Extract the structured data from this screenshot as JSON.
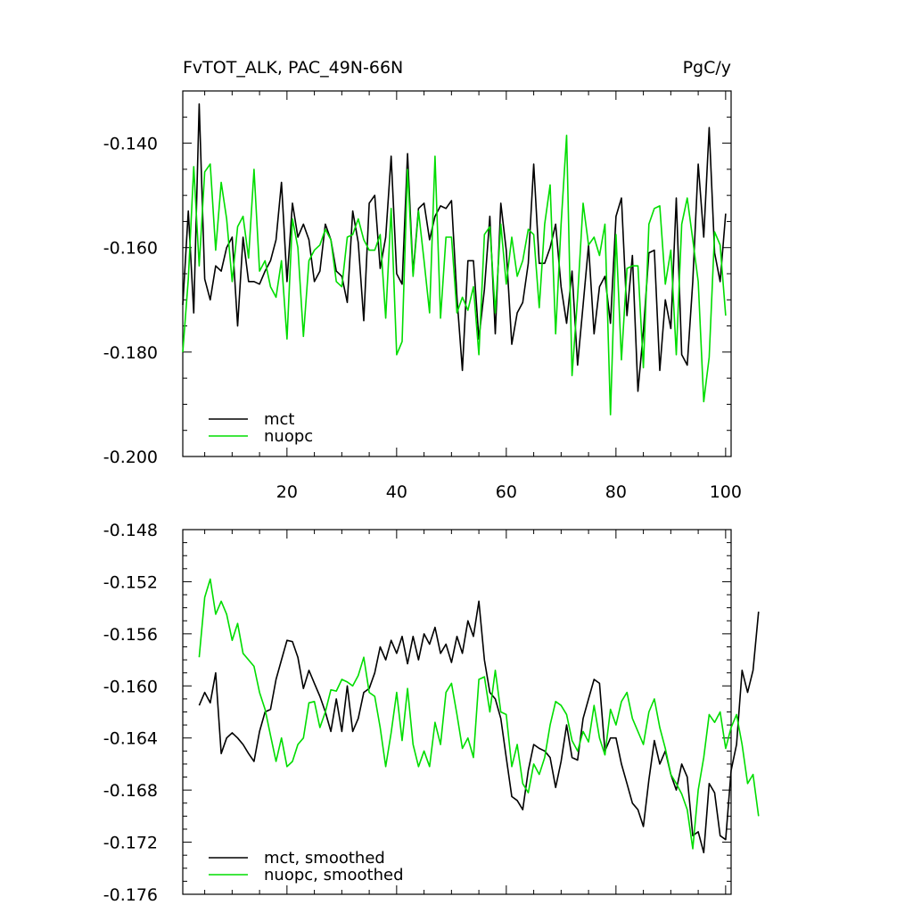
{
  "chart_data": [
    {
      "type": "line",
      "title": "FvTOT_ALK, PAC_49N-66N",
      "units": "PgC/y",
      "xlim": [
        1,
        101
      ],
      "ylim": [
        -0.2,
        -0.13
      ],
      "xticks": [
        20,
        40,
        60,
        80,
        100
      ],
      "yticks": [
        -0.2,
        -0.18,
        -0.16,
        -0.14
      ],
      "ytick_labels": [
        "-0.200",
        "-0.180",
        "-0.160",
        "-0.140"
      ],
      "legend_position": "bottom-left",
      "series": [
        {
          "name": "mct",
          "color": "#000000",
          "x_start": 1,
          "values": [
            -0.171,
            -0.153,
            -0.1725,
            -0.1325,
            -0.166,
            -0.17,
            -0.1635,
            -0.1645,
            -0.16,
            -0.158,
            -0.175,
            -0.158,
            -0.1665,
            -0.1665,
            -0.167,
            -0.1645,
            -0.1625,
            -0.1585,
            -0.1475,
            -0.1665,
            -0.1515,
            -0.158,
            -0.1555,
            -0.1585,
            -0.1665,
            -0.1645,
            -0.1555,
            -0.1585,
            -0.1645,
            -0.1655,
            -0.1705,
            -0.153,
            -0.159,
            -0.174,
            -0.1515,
            -0.15,
            -0.164,
            -0.158,
            -0.1425,
            -0.165,
            -0.167,
            -0.142,
            -0.165,
            -0.1525,
            -0.1515,
            -0.1585,
            -0.154,
            -0.152,
            -0.1525,
            -0.151,
            -0.1695,
            -0.1835,
            -0.1625,
            -0.1625,
            -0.1775,
            -0.168,
            -0.154,
            -0.1765,
            -0.1515,
            -0.1605,
            -0.1785,
            -0.1725,
            -0.1705,
            -0.163,
            -0.144,
            -0.163,
            -0.163,
            -0.16,
            -0.1555,
            -0.1675,
            -0.1745,
            -0.1645,
            -0.1825,
            -0.171,
            -0.1595,
            -0.1765,
            -0.1675,
            -0.1655,
            -0.1745,
            -0.154,
            -0.1505,
            -0.173,
            -0.1615,
            -0.1875,
            -0.176,
            -0.161,
            -0.1605,
            -0.1835,
            -0.17,
            -0.1755,
            -0.1505,
            -0.1805,
            -0.1825,
            -0.1665,
            -0.144,
            -0.158,
            -0.137,
            -0.161,
            -0.1665,
            -0.1535
          ]
        },
        {
          "name": "nuopc",
          "color": "#00dd00",
          "x_start": 1,
          "values": [
            -0.18,
            -0.166,
            -0.1445,
            -0.1635,
            -0.1455,
            -0.144,
            -0.1605,
            -0.1475,
            -0.1545,
            -0.1665,
            -0.156,
            -0.154,
            -0.162,
            -0.145,
            -0.1645,
            -0.1625,
            -0.1675,
            -0.1695,
            -0.1625,
            -0.1775,
            -0.1545,
            -0.16,
            -0.177,
            -0.1625,
            -0.1605,
            -0.1595,
            -0.1565,
            -0.1585,
            -0.1665,
            -0.1675,
            -0.158,
            -0.1575,
            -0.1545,
            -0.1585,
            -0.1605,
            -0.1605,
            -0.1575,
            -0.1735,
            -0.1525,
            -0.1805,
            -0.178,
            -0.145,
            -0.1655,
            -0.153,
            -0.1625,
            -0.1725,
            -0.1425,
            -0.1735,
            -0.158,
            -0.158,
            -0.1725,
            -0.1695,
            -0.172,
            -0.1675,
            -0.1805,
            -0.1575,
            -0.156,
            -0.1725,
            -0.1555,
            -0.167,
            -0.158,
            -0.1655,
            -0.1625,
            -0.1565,
            -0.1575,
            -0.1715,
            -0.1555,
            -0.148,
            -0.1765,
            -0.1555,
            -0.1385,
            -0.1845,
            -0.1695,
            -0.1515,
            -0.1595,
            -0.158,
            -0.1615,
            -0.1555,
            -0.192,
            -0.1575,
            -0.1815,
            -0.164,
            -0.1635,
            -0.1635,
            -0.183,
            -0.1555,
            -0.1525,
            -0.152,
            -0.167,
            -0.1605,
            -0.1805,
            -0.1555,
            -0.1505,
            -0.1585,
            -0.1665,
            -0.1895,
            -0.181,
            -0.157,
            -0.1595,
            -0.173
          ]
        }
      ]
    },
    {
      "type": "line",
      "xlim": [
        1,
        101
      ],
      "ylim": [
        -0.176,
        -0.148
      ],
      "yticks": [
        -0.176,
        -0.172,
        -0.168,
        -0.164,
        -0.16,
        -0.156,
        -0.152,
        -0.148
      ],
      "ytick_labels": [
        "-0.176",
        "-0.172",
        "-0.168",
        "-0.164",
        "-0.160",
        "-0.156",
        "-0.152",
        "-0.148"
      ],
      "legend_position": "bottom-left",
      "series": [
        {
          "name": "mct, smoothed",
          "color": "#000000",
          "x_start": 4,
          "values": [
            -0.1615,
            -0.1605,
            -0.1613,
            -0.159,
            -0.1652,
            -0.164,
            -0.1636,
            -0.164,
            -0.1645,
            -0.1652,
            -0.1658,
            -0.1635,
            -0.162,
            -0.1618,
            -0.1595,
            -0.158,
            -0.1565,
            -0.1566,
            -0.1578,
            -0.1602,
            -0.1588,
            -0.1598,
            -0.1608,
            -0.162,
            -0.1635,
            -0.161,
            -0.1635,
            -0.16,
            -0.1635,
            -0.1625,
            -0.1605,
            -0.1602,
            -0.159,
            -0.157,
            -0.158,
            -0.1565,
            -0.1575,
            -0.1562,
            -0.1583,
            -0.1562,
            -0.158,
            -0.156,
            -0.1568,
            -0.1555,
            -0.1575,
            -0.1568,
            -0.1582,
            -0.1562,
            -0.1575,
            -0.155,
            -0.1562,
            -0.1535,
            -0.158,
            -0.1605,
            -0.161,
            -0.1625,
            -0.1655,
            -0.1685,
            -0.1688,
            -0.1695,
            -0.1665,
            -0.1645,
            -0.1648,
            -0.165,
            -0.1655,
            -0.1678,
            -0.1658,
            -0.163,
            -0.1655,
            -0.1657,
            -0.1625,
            -0.161,
            -0.1595,
            -0.1598,
            -0.165,
            -0.164,
            -0.164,
            -0.166,
            -0.1675,
            -0.169,
            -0.1695,
            -0.1708,
            -0.1672,
            -0.1642,
            -0.166,
            -0.165,
            -0.1668,
            -0.168,
            -0.166,
            -0.167,
            -0.1715,
            -0.1712,
            -0.1728,
            -0.1675,
            -0.1682,
            -0.1715,
            -0.1718,
            -0.1665,
            -0.1645,
            -0.1588,
            -0.1605,
            -0.1588,
            -0.1543
          ]
        },
        {
          "name": "nuopc, smoothed",
          "color": "#00dd00",
          "x_start": 4,
          "values": [
            -0.1578,
            -0.1532,
            -0.1518,
            -0.1545,
            -0.1535,
            -0.1545,
            -0.1565,
            -0.1552,
            -0.1575,
            -0.158,
            -0.1585,
            -0.1605,
            -0.1618,
            -0.1638,
            -0.1658,
            -0.164,
            -0.1662,
            -0.1658,
            -0.1645,
            -0.164,
            -0.1613,
            -0.1612,
            -0.1632,
            -0.162,
            -0.1603,
            -0.1604,
            -0.1595,
            -0.1597,
            -0.16,
            -0.1592,
            -0.1578,
            -0.1605,
            -0.1608,
            -0.1632,
            -0.1662,
            -0.1636,
            -0.1605,
            -0.1642,
            -0.1602,
            -0.1645,
            -0.1662,
            -0.165,
            -0.1662,
            -0.1628,
            -0.1645,
            -0.1605,
            -0.1598,
            -0.1622,
            -0.1648,
            -0.164,
            -0.1655,
            -0.1595,
            -0.1593,
            -0.162,
            -0.1588,
            -0.162,
            -0.1622,
            -0.1662,
            -0.1645,
            -0.1675,
            -0.1682,
            -0.166,
            -0.1668,
            -0.1655,
            -0.163,
            -0.1612,
            -0.1615,
            -0.1622,
            -0.1642,
            -0.165,
            -0.1635,
            -0.1643,
            -0.1615,
            -0.164,
            -0.1653,
            -0.1618,
            -0.163,
            -0.1612,
            -0.1605,
            -0.1625,
            -0.1635,
            -0.1645,
            -0.162,
            -0.161,
            -0.1632,
            -0.1648,
            -0.1668,
            -0.1675,
            -0.1683,
            -0.1695,
            -0.1725,
            -0.168,
            -0.1655,
            -0.1622,
            -0.1628,
            -0.162,
            -0.1648,
            -0.1632,
            -0.1622,
            -0.1645,
            -0.1675,
            -0.1668,
            -0.17
          ]
        }
      ]
    }
  ]
}
